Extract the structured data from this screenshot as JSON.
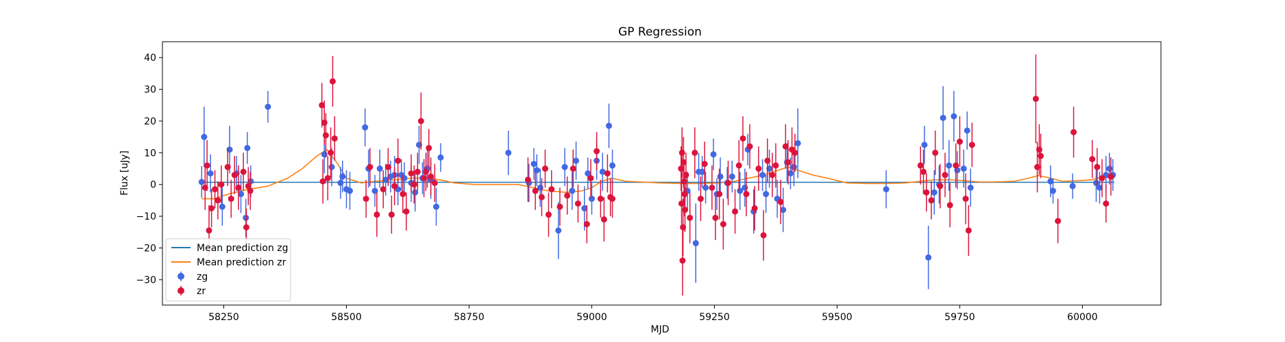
{
  "chart_data": {
    "type": "scatter",
    "title": "GP Regression",
    "xlabel": "MJD",
    "ylabel": "Flux [uJy]",
    "xlim": [
      58125,
      60160
    ],
    "ylim": [
      -38,
      45
    ],
    "xticks": [
      58250,
      58500,
      58750,
      59000,
      59250,
      59500,
      59750,
      60000
    ],
    "yticks": [
      -30,
      -20,
      -10,
      0,
      10,
      20,
      30,
      40
    ],
    "grid": false,
    "legend": "lower-left",
    "colors": {
      "zg": "#4169e1",
      "zr": "#dc143c",
      "line_zg": "#1f77b4",
      "line_zr": "#ff7f0e"
    },
    "lines": [
      {
        "name": "Mean prediction zg",
        "x": [
          58205,
          60065
        ],
        "y": [
          0.7,
          0.7
        ]
      },
      {
        "name": "Mean prediction zr",
        "x": [
          58205,
          58230,
          58260,
          58300,
          58340,
          58380,
          58410,
          58440,
          58460,
          58480,
          58500,
          58530,
          58560,
          58600,
          58630,
          58660,
          58690,
          58720,
          58760,
          58800,
          58850,
          58880,
          58910,
          58950,
          58980,
          59000,
          59020,
          59040,
          59070,
          59100,
          59140,
          59180,
          59220,
          59260,
          59290,
          59320,
          59350,
          59380,
          59400,
          59420,
          59450,
          59480,
          59520,
          59560,
          59600,
          59640,
          59670,
          59700,
          59730,
          59760,
          59790,
          59820,
          59860,
          59890,
          59910,
          59930,
          59960,
          59990,
          60020,
          60040,
          60065
        ],
        "y": [
          -4.5,
          -4.5,
          -3,
          -1.5,
          -0.5,
          2,
          5,
          9,
          11,
          7,
          2,
          0.5,
          1,
          1.5,
          2,
          2,
          1.5,
          0.5,
          0,
          0,
          0,
          -1,
          -2,
          -2.5,
          -2,
          -1,
          1,
          2,
          1,
          0.8,
          0.5,
          0.3,
          0.3,
          0.5,
          1,
          2,
          3,
          4.5,
          5.5,
          4.5,
          3,
          2,
          0.5,
          0.3,
          0.3,
          0.5,
          1,
          1.5,
          1.5,
          1.2,
          0.8,
          0.8,
          1,
          2,
          2.8,
          2.2,
          1,
          1.2,
          1.5,
          2.5,
          2
        ]
      }
    ],
    "series": [
      {
        "name": "zg",
        "x": [
          58205,
          58210,
          58223,
          58247,
          58262,
          58276,
          58285,
          58295,
          58298,
          58305,
          58340,
          58455,
          58470,
          58488,
          58492,
          58500,
          58507,
          58538,
          58545,
          58558,
          58568,
          58580,
          58590,
          58598,
          58605,
          58612,
          58618,
          58632,
          58640,
          58648,
          58655,
          58665,
          58672,
          58683,
          58692,
          58830,
          58872,
          58882,
          58888,
          58895,
          58932,
          58945,
          58960,
          58968,
          58985,
          58992,
          59000,
          59010,
          59022,
          59035,
          59042,
          59195,
          59212,
          59218,
          59225,
          59232,
          59248,
          59255,
          59262,
          59276,
          59286,
          59302,
          59312,
          59318,
          59330,
          59348,
          59355,
          59362,
          59378,
          59390,
          59398,
          59405,
          59412,
          59420,
          59600,
          59678,
          59686,
          59698,
          59708,
          59716,
          59728,
          59738,
          59745,
          59758,
          59765,
          59772,
          59935,
          59940,
          59980,
          60028,
          60035,
          60048,
          60055,
          60062
        ],
        "y": [
          0.8,
          15,
          3.5,
          -7,
          11,
          3.5,
          -3,
          -10.5,
          11.5,
          1,
          24.5,
          9.5,
          5.5,
          0.5,
          2.5,
          -1.5,
          -2,
          18,
          5,
          -2,
          5,
          1.5,
          2.5,
          3,
          -1.5,
          3,
          2,
          0.5,
          -2.5,
          12.5,
          2,
          5,
          1.5,
          -7,
          8.5,
          10,
          0.5,
          6.5,
          4.5,
          -1,
          -14.5,
          5.5,
          -2,
          7.5,
          -7.5,
          3.5,
          -4.5,
          7.5,
          4,
          18.5,
          6,
          -2,
          -18.5,
          4,
          4,
          -1,
          9.5,
          -3,
          2.5,
          0.5,
          2.5,
          -2,
          -1,
          11,
          -8.5,
          3,
          -3,
          5,
          -4.5,
          -8,
          7,
          3.5,
          5.5,
          13,
          -1.5,
          12.5,
          -23,
          -2.5,
          0,
          21,
          6,
          21.5,
          4.5,
          5,
          17,
          -1,
          1,
          -2,
          -0.5,
          0.5,
          -1,
          3,
          5,
          3
        ],
        "err": [
          5,
          9.5,
          6,
          6,
          7.5,
          5.5,
          6,
          6,
          5,
          5,
          5,
          6,
          6,
          5,
          5,
          6,
          6,
          6,
          6,
          5,
          6,
          5,
          5,
          6,
          5,
          5,
          5,
          6,
          6,
          6,
          5,
          6,
          6,
          6,
          4.5,
          7,
          6,
          5,
          5,
          6,
          9,
          6,
          6,
          6,
          7,
          5,
          5,
          6,
          6,
          7,
          5,
          6,
          12.5,
          6,
          5,
          5,
          5,
          5,
          6,
          5,
          5,
          6,
          6,
          5,
          7,
          5,
          6,
          6,
          6,
          7,
          6,
          5,
          6,
          11,
          6,
          6,
          10,
          7,
          6,
          10,
          8,
          8,
          6,
          6,
          6,
          6,
          5,
          4,
          4,
          6,
          5,
          6,
          5,
          5
        ]
      },
      {
        "name": "zr",
        "x": [
          58212,
          58216,
          58220,
          58225,
          58232,
          58238,
          58245,
          58258,
          58265,
          58272,
          58280,
          58290,
          58296,
          58300,
          58304,
          58450,
          58452,
          58455,
          58458,
          58462,
          58468,
          58472,
          58476,
          58540,
          58548,
          58562,
          58575,
          58585,
          58592,
          58598,
          58605,
          58615,
          58622,
          58632,
          58638,
          58645,
          58652,
          58658,
          58662,
          58668,
          58672,
          58680,
          58870,
          58885,
          58898,
          58905,
          58912,
          58918,
          58935,
          58950,
          58962,
          58972,
          58990,
          58998,
          59010,
          59018,
          59025,
          59032,
          59038,
          59042,
          59182,
          59183,
          59184,
          59185,
          59186,
          59187,
          59188,
          59189,
          59190,
          59192,
          59200,
          59210,
          59222,
          59230,
          59245,
          59252,
          59260,
          59268,
          59278,
          59292,
          59300,
          59308,
          59315,
          59322,
          59332,
          59340,
          59350,
          59358,
          59368,
          59375,
          59385,
          59395,
          59400,
          59408,
          59414,
          59670,
          59676,
          59682,
          59692,
          59700,
          59710,
          59720,
          59730,
          59742,
          59750,
          59762,
          59768,
          59775,
          59905,
          59908,
          59912,
          59915,
          59950,
          59982,
          60020,
          60030,
          60040,
          60048,
          60058
        ],
        "y": [
          -1,
          6,
          -14.5,
          -7.5,
          -1.5,
          -5,
          0,
          5.5,
          -4.5,
          3,
          -1,
          4,
          -13.5,
          -0.5,
          -2,
          25,
          1,
          19.5,
          15.5,
          2,
          10,
          32.5,
          14.5,
          -4.5,
          5.5,
          -9.5,
          -1.5,
          5.5,
          -9.5,
          -0.5,
          7.5,
          -3,
          -8.5,
          3.5,
          0,
          4,
          20,
          2,
          4,
          11.5,
          2.5,
          0.5,
          1.5,
          -2,
          -4,
          5,
          -9.5,
          -1.5,
          -7,
          -3.5,
          5,
          -6,
          -12.5,
          2,
          10.5,
          -4.5,
          -11,
          3.5,
          -4,
          -4.5,
          5,
          -6,
          10,
          -24,
          -13.5,
          7,
          1,
          -3,
          -8,
          3,
          -10.5,
          10,
          -4.5,
          6.5,
          -1,
          -10.5,
          -3,
          -12.5,
          0.5,
          -8.5,
          6,
          14.5,
          -3,
          12,
          -7.5,
          5,
          -16,
          7.5,
          3,
          6,
          -5.5,
          12,
          7,
          11,
          10,
          6,
          4,
          -2.5,
          -5,
          10,
          -0.5,
          3,
          -6.5,
          6,
          13.5,
          -4.5,
          -14.5,
          12.5,
          27,
          5.5,
          11,
          9,
          -11.5,
          16.5,
          8,
          5.5,
          2,
          -6,
          2.5
        ],
        "err": [
          7,
          8,
          8,
          6,
          6,
          6,
          6,
          6,
          6,
          6,
          7,
          6,
          6,
          6,
          6,
          7,
          7,
          7,
          7,
          7,
          8,
          8,
          7,
          6,
          6,
          7,
          6,
          6,
          6,
          6,
          7,
          6,
          6,
          6,
          6,
          6,
          9,
          6,
          6,
          6,
          6,
          6,
          7,
          6,
          6,
          6,
          7,
          6,
          6,
          6,
          6,
          6,
          6,
          6,
          6,
          6,
          7,
          6,
          6,
          6,
          7,
          7,
          8,
          11,
          9,
          8,
          7,
          7,
          7,
          7,
          8,
          8,
          7,
          7,
          7,
          7,
          8,
          8,
          7,
          7,
          8,
          7,
          7,
          7,
          7,
          7,
          8,
          7,
          7,
          7,
          7,
          7,
          7,
          7,
          6,
          6,
          7,
          6,
          6,
          7,
          7,
          7,
          7,
          7,
          8,
          8,
          8,
          7,
          14,
          8,
          8,
          7,
          7,
          8,
          6,
          6,
          6,
          6,
          6
        ]
      }
    ]
  }
}
